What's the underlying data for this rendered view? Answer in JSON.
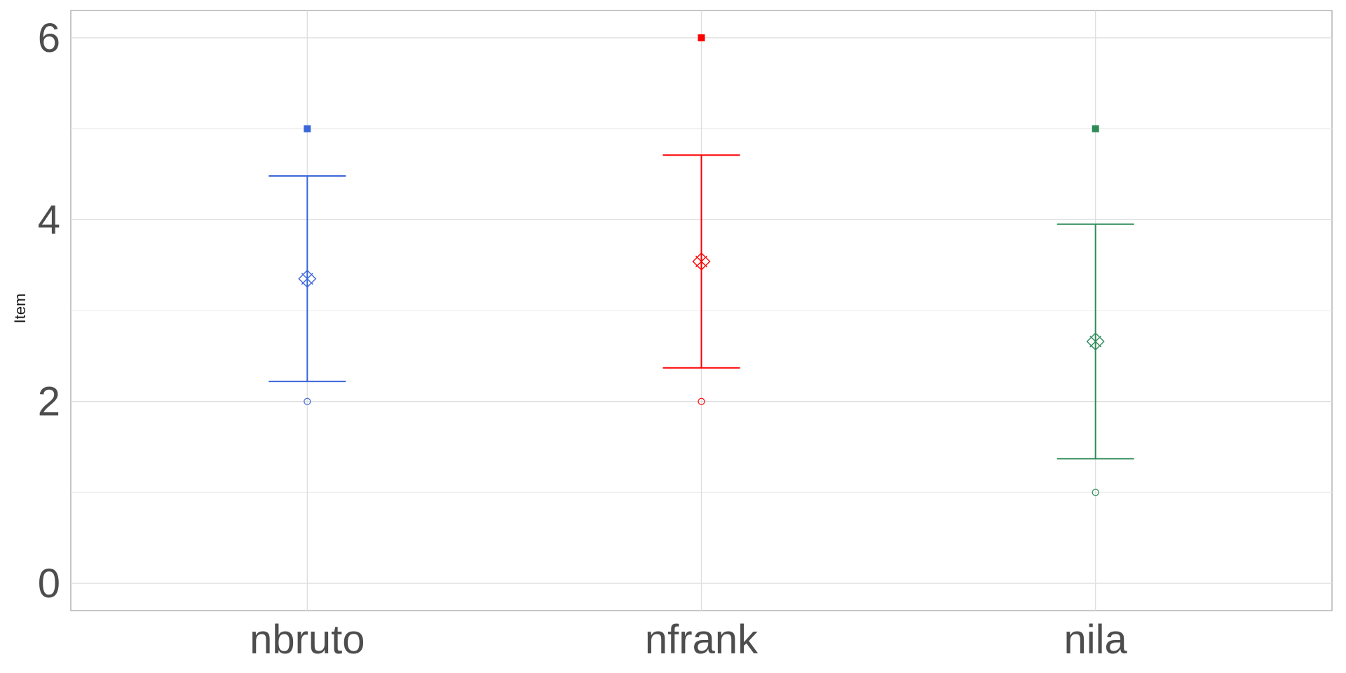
{
  "chart_data": {
    "type": "scatter",
    "title": "",
    "xlabel": "",
    "ylabel": "Item",
    "ylim": [
      -0.3,
      6.3
    ],
    "yticks": [
      0,
      2,
      4,
      6
    ],
    "ygrid_minor": [
      1,
      3,
      5
    ],
    "grid": true,
    "legend": "none",
    "categories": [
      "nbruto",
      "nfrank",
      "nila"
    ],
    "colors": [
      "#3a66d9",
      "#ff0000",
      "#2e8b57"
    ],
    "series": [
      {
        "category": "nbruto",
        "mean": 3.35,
        "error_lower": 2.22,
        "error_upper": 4.48,
        "max": 5,
        "min": 2
      },
      {
        "category": "nfrank",
        "mean": 3.54,
        "error_lower": 2.37,
        "error_upper": 4.71,
        "max": 6,
        "min": 2
      },
      {
        "category": "nila",
        "mean": 2.66,
        "error_lower": 1.37,
        "error_upper": 3.95,
        "max": 5,
        "min": 1
      }
    ]
  }
}
